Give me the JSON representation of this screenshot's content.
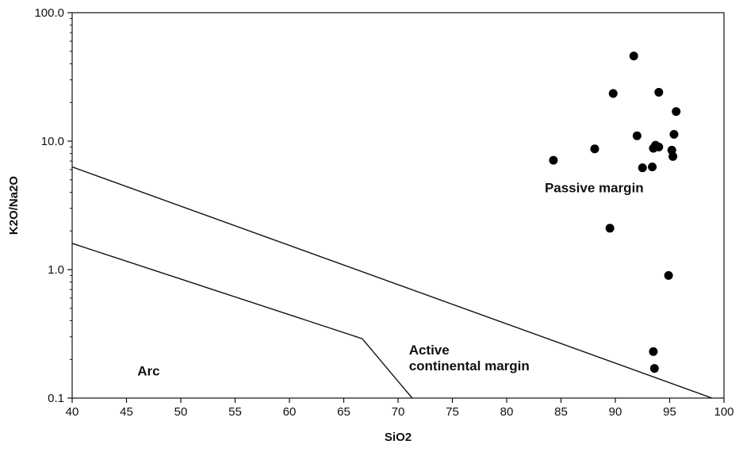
{
  "chart_data": {
    "type": "scatter",
    "xlabel": "SiO2",
    "ylabel": "K2O/Na2O",
    "xlim": [
      40,
      100
    ],
    "ylim": [
      0.1,
      100
    ],
    "y_scale": "log",
    "x_ticks": [
      "40",
      "45",
      "50",
      "55",
      "60",
      "65",
      "70",
      "75",
      "80",
      "85",
      "90",
      "95",
      "100"
    ],
    "y_ticks": [
      "0.1",
      "1.0",
      "10.0",
      "100.0"
    ],
    "grid": false,
    "points": [
      {
        "x": 84.3,
        "y": 7.1
      },
      {
        "x": 88.1,
        "y": 8.7
      },
      {
        "x": 89.5,
        "y": 2.1
      },
      {
        "x": 89.8,
        "y": 23.5
      },
      {
        "x": 91.7,
        "y": 46.0
      },
      {
        "x": 92.0,
        "y": 11.0
      },
      {
        "x": 92.5,
        "y": 6.2
      },
      {
        "x": 93.4,
        "y": 6.3
      },
      {
        "x": 93.5,
        "y": 8.8
      },
      {
        "x": 93.7,
        "y": 9.3
      },
      {
        "x": 94.0,
        "y": 9.0
      },
      {
        "x": 94.0,
        "y": 24.0
      },
      {
        "x": 94.9,
        "y": 0.9
      },
      {
        "x": 95.2,
        "y": 8.5
      },
      {
        "x": 95.3,
        "y": 7.6
      },
      {
        "x": 95.4,
        "y": 11.3
      },
      {
        "x": 95.6,
        "y": 17.0
      },
      {
        "x": 93.5,
        "y": 0.23
      },
      {
        "x": 93.6,
        "y": 0.17
      }
    ],
    "boundary_lines": [
      {
        "points": [
          [
            40,
            6.3
          ],
          [
            98.9,
            0.1
          ]
        ]
      },
      {
        "points": [
          [
            40,
            1.6
          ],
          [
            66.7,
            0.29
          ],
          [
            71.3,
            0.1
          ]
        ]
      }
    ],
    "region_labels": [
      {
        "lines": [
          "Passive margin"
        ],
        "x": 83.5,
        "y": 4.0
      },
      {
        "lines": [
          "Active",
          "continental margin"
        ],
        "x": 71.0,
        "y": 0.19
      },
      {
        "lines": [
          "Arc"
        ],
        "x": 46.0,
        "y": 0.15
      }
    ]
  }
}
